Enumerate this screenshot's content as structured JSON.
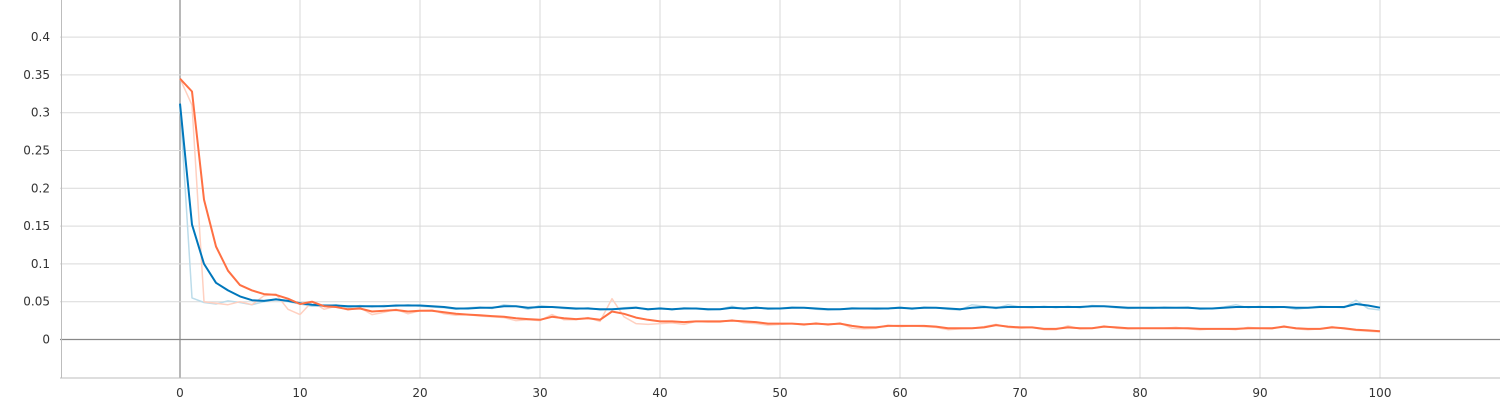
{
  "chart_data": {
    "type": "line",
    "title": "",
    "xlabel": "",
    "ylabel": "",
    "xlim": [
      -10,
      110
    ],
    "ylim": [
      -0.05,
      0.44
    ],
    "grid": true,
    "legend": "none",
    "x_ticks": [
      0,
      10,
      20,
      30,
      40,
      50,
      60,
      70,
      80,
      90,
      100
    ],
    "x_tick_labels": [
      "0",
      "10",
      "20",
      "30",
      "40",
      "50",
      "60",
      "70",
      "80",
      "90",
      "100"
    ],
    "y_ticks": [
      0,
      0.05,
      0.1,
      0.15,
      0.2,
      0.25,
      0.3,
      0.35,
      0.4
    ],
    "y_tick_labels": [
      "0",
      "0.05",
      "0.1",
      "0.15",
      "0.2",
      "0.25",
      "0.3",
      "0.35",
      "0.4"
    ],
    "x": [
      0,
      1,
      2,
      3,
      4,
      5,
      6,
      7,
      8,
      9,
      10,
      11,
      12,
      13,
      14,
      15,
      16,
      17,
      18,
      19,
      20,
      21,
      22,
      23,
      24,
      25,
      26,
      27,
      28,
      29,
      30,
      31,
      32,
      33,
      34,
      35,
      36,
      37,
      38,
      39,
      40,
      41,
      42,
      43,
      44,
      45,
      46,
      47,
      48,
      49,
      50,
      51,
      52,
      53,
      54,
      55,
      56,
      57,
      58,
      59,
      60,
      61,
      62,
      63,
      64,
      65,
      66,
      67,
      68,
      69,
      70,
      71,
      72,
      73,
      74,
      75,
      76,
      77,
      78,
      79,
      80,
      81,
      82,
      83,
      84,
      85,
      86,
      87,
      88,
      89,
      90,
      91,
      92,
      93,
      94,
      95,
      96,
      97,
      98,
      99,
      100
    ],
    "series": [
      {
        "color": "#0077bb",
        "raw_color": "#bcdcea",
        "values": [
          0.312,
          0.152,
          0.1,
          0.075,
          0.065,
          0.057,
          0.052,
          0.051,
          0.053,
          0.051,
          0.048,
          0.046,
          0.045,
          0.045,
          0.044,
          0.044,
          0.044,
          0.044,
          0.045,
          0.045,
          0.045,
          0.044,
          0.043,
          0.041,
          0.041,
          0.042,
          0.042,
          0.044,
          0.044,
          0.042,
          0.043,
          0.043,
          0.042,
          0.041,
          0.041,
          0.04,
          0.04,
          0.041,
          0.042,
          0.04,
          0.041,
          0.04,
          0.041,
          0.041,
          0.04,
          0.04,
          0.042,
          0.041,
          0.042,
          0.041,
          0.041,
          0.042,
          0.042,
          0.041,
          0.04,
          0.04,
          0.041,
          0.041,
          0.041,
          0.041,
          0.042,
          0.041,
          0.042,
          0.042,
          0.041,
          0.04,
          0.042,
          0.043,
          0.042,
          0.043,
          0.043,
          0.043,
          0.043,
          0.043,
          0.043,
          0.043,
          0.044,
          0.044,
          0.043,
          0.042,
          0.042,
          0.042,
          0.042,
          0.042,
          0.042,
          0.041,
          0.041,
          0.042,
          0.043,
          0.043,
          0.043,
          0.043,
          0.043,
          0.042,
          0.042,
          0.043,
          0.043,
          0.043,
          0.047,
          0.045,
          0.042
        ],
        "raw_values": [
          0.31,
          0.055,
          0.049,
          0.047,
          0.051,
          0.049,
          0.046,
          0.05,
          0.054,
          0.05,
          0.047,
          0.044,
          0.044,
          0.046,
          0.042,
          0.045,
          0.043,
          0.045,
          0.044,
          0.046,
          0.044,
          0.043,
          0.042,
          0.04,
          0.042,
          0.043,
          0.041,
          0.046,
          0.044,
          0.04,
          0.045,
          0.043,
          0.041,
          0.04,
          0.042,
          0.039,
          0.04,
          0.042,
          0.043,
          0.039,
          0.042,
          0.039,
          0.042,
          0.041,
          0.039,
          0.04,
          0.044,
          0.04,
          0.043,
          0.04,
          0.041,
          0.043,
          0.042,
          0.04,
          0.039,
          0.04,
          0.042,
          0.041,
          0.04,
          0.041,
          0.043,
          0.04,
          0.043,
          0.042,
          0.04,
          0.039,
          0.046,
          0.044,
          0.041,
          0.046,
          0.043,
          0.042,
          0.044,
          0.042,
          0.044,
          0.042,
          0.045,
          0.044,
          0.042,
          0.041,
          0.042,
          0.041,
          0.043,
          0.042,
          0.043,
          0.04,
          0.041,
          0.043,
          0.046,
          0.042,
          0.044,
          0.042,
          0.043,
          0.04,
          0.042,
          0.044,
          0.043,
          0.042,
          0.052,
          0.041,
          0.039
        ]
      },
      {
        "color": "#ff7043",
        "raw_color": "#ffd0c0",
        "values": [
          0.345,
          0.328,
          0.185,
          0.123,
          0.091,
          0.072,
          0.065,
          0.06,
          0.059,
          0.054,
          0.047,
          0.05,
          0.044,
          0.043,
          0.04,
          0.041,
          0.037,
          0.038,
          0.039,
          0.037,
          0.038,
          0.038,
          0.036,
          0.034,
          0.033,
          0.032,
          0.031,
          0.03,
          0.028,
          0.027,
          0.026,
          0.03,
          0.028,
          0.027,
          0.028,
          0.026,
          0.037,
          0.034,
          0.029,
          0.026,
          0.024,
          0.024,
          0.023,
          0.024,
          0.024,
          0.024,
          0.025,
          0.024,
          0.023,
          0.021,
          0.021,
          0.021,
          0.02,
          0.021,
          0.02,
          0.021,
          0.018,
          0.016,
          0.016,
          0.018,
          0.018,
          0.018,
          0.018,
          0.017,
          0.015,
          0.015,
          0.015,
          0.016,
          0.019,
          0.017,
          0.016,
          0.016,
          0.014,
          0.014,
          0.016,
          0.015,
          0.015,
          0.017,
          0.016,
          0.015,
          0.015,
          0.015,
          0.015,
          0.015,
          0.015,
          0.014,
          0.014,
          0.014,
          0.014,
          0.015,
          0.015,
          0.015,
          0.017,
          0.015,
          0.014,
          0.014,
          0.016,
          0.015,
          0.013,
          0.012,
          0.011
        ],
        "raw_values": [
          0.345,
          0.31,
          0.05,
          0.048,
          0.046,
          0.05,
          0.046,
          0.058,
          0.06,
          0.04,
          0.033,
          0.05,
          0.04,
          0.044,
          0.039,
          0.042,
          0.033,
          0.036,
          0.04,
          0.034,
          0.038,
          0.039,
          0.034,
          0.032,
          0.033,
          0.031,
          0.03,
          0.029,
          0.025,
          0.026,
          0.025,
          0.033,
          0.026,
          0.026,
          0.029,
          0.024,
          0.054,
          0.03,
          0.021,
          0.02,
          0.021,
          0.022,
          0.02,
          0.024,
          0.023,
          0.023,
          0.026,
          0.022,
          0.021,
          0.019,
          0.02,
          0.021,
          0.019,
          0.022,
          0.019,
          0.022,
          0.015,
          0.014,
          0.015,
          0.019,
          0.017,
          0.018,
          0.017,
          0.016,
          0.013,
          0.014,
          0.015,
          0.017,
          0.02,
          0.016,
          0.015,
          0.016,
          0.013,
          0.013,
          0.018,
          0.014,
          0.015,
          0.018,
          0.015,
          0.014,
          0.015,
          0.015,
          0.015,
          0.016,
          0.014,
          0.013,
          0.014,
          0.014,
          0.013,
          0.016,
          0.015,
          0.014,
          0.018,
          0.014,
          0.013,
          0.014,
          0.017,
          0.014,
          0.012,
          0.011,
          0.01
        ]
      }
    ]
  }
}
